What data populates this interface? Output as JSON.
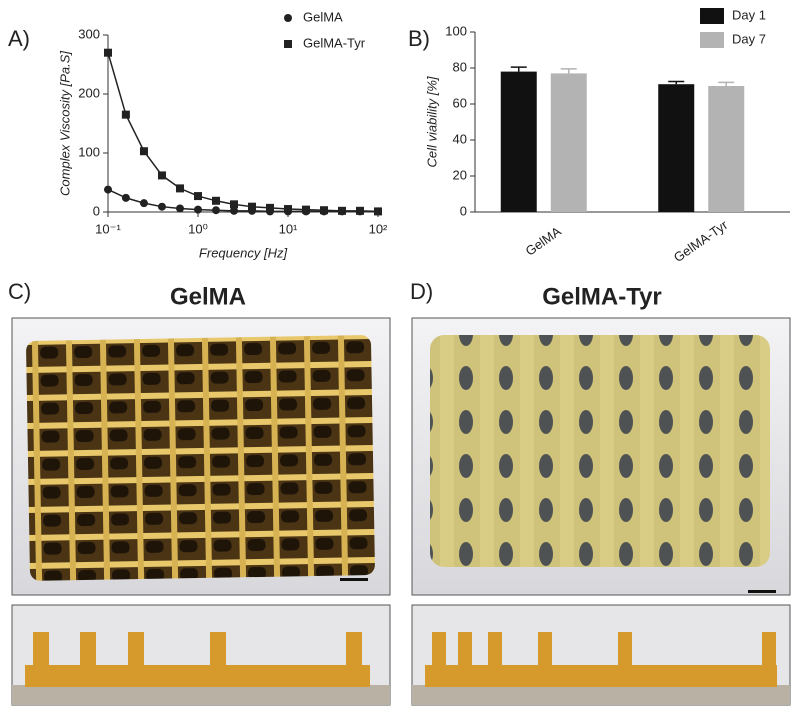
{
  "panel_labels": [
    "A)",
    "B)",
    "C)",
    "D)"
  ],
  "photo_titles": [
    "GelMA",
    "GelMA-Tyr"
  ],
  "chart_data": [
    {
      "type": "line",
      "xlabel": "Frequency [Hz]",
      "ylabel": "Complex Viscosity [Pa.S]",
      "log_x": true,
      "x": [
        0.1,
        0.158,
        0.251,
        0.398,
        0.631,
        1,
        1.585,
        2.512,
        3.981,
        6.31,
        10,
        15.85,
        25.12,
        39.81,
        63.1,
        100
      ],
      "series": [
        {
          "name": "GelMA",
          "color": "#222222",
          "marker": "circle",
          "values": [
            38,
            24,
            15,
            9,
            6,
            4,
            3,
            2,
            2,
            1,
            1,
            1,
            1,
            1,
            1,
            1
          ]
        },
        {
          "name": "GelMA-Tyr",
          "color": "#222222",
          "marker": "square",
          "values": [
            270,
            165,
            103,
            62,
            40,
            27,
            19,
            13,
            9,
            7,
            5,
            4,
            3,
            2,
            2,
            1
          ]
        }
      ],
      "xlim": [
        0.1,
        100
      ],
      "xticks": [
        {
          "value": 0.1,
          "label": "10⁻¹"
        },
        {
          "value": 1,
          "label": "10⁰"
        },
        {
          "value": 10,
          "label": "10¹"
        },
        {
          "value": 100,
          "label": "10²"
        }
      ],
      "ylim": [
        0,
        300
      ],
      "yticks": [
        0,
        100,
        200,
        300
      ],
      "legend": "top-right"
    },
    {
      "type": "bar",
      "ylabel": "Cell viability [%]",
      "categories": [
        "GelMA",
        "GelMA-Tyr"
      ],
      "series": [
        {
          "name": "Day 1",
          "color": "#111111",
          "values": [
            78,
            71
          ],
          "errors": [
            2.5,
            1.5
          ]
        },
        {
          "name": "Day 7",
          "color": "#b3b3b3",
          "values": [
            77,
            70
          ],
          "errors": [
            2.5,
            2
          ]
        }
      ],
      "ylim": [
        0,
        100
      ],
      "yticks": [
        0,
        20,
        40,
        60,
        80,
        100
      ],
      "legend": "top-right"
    }
  ]
}
